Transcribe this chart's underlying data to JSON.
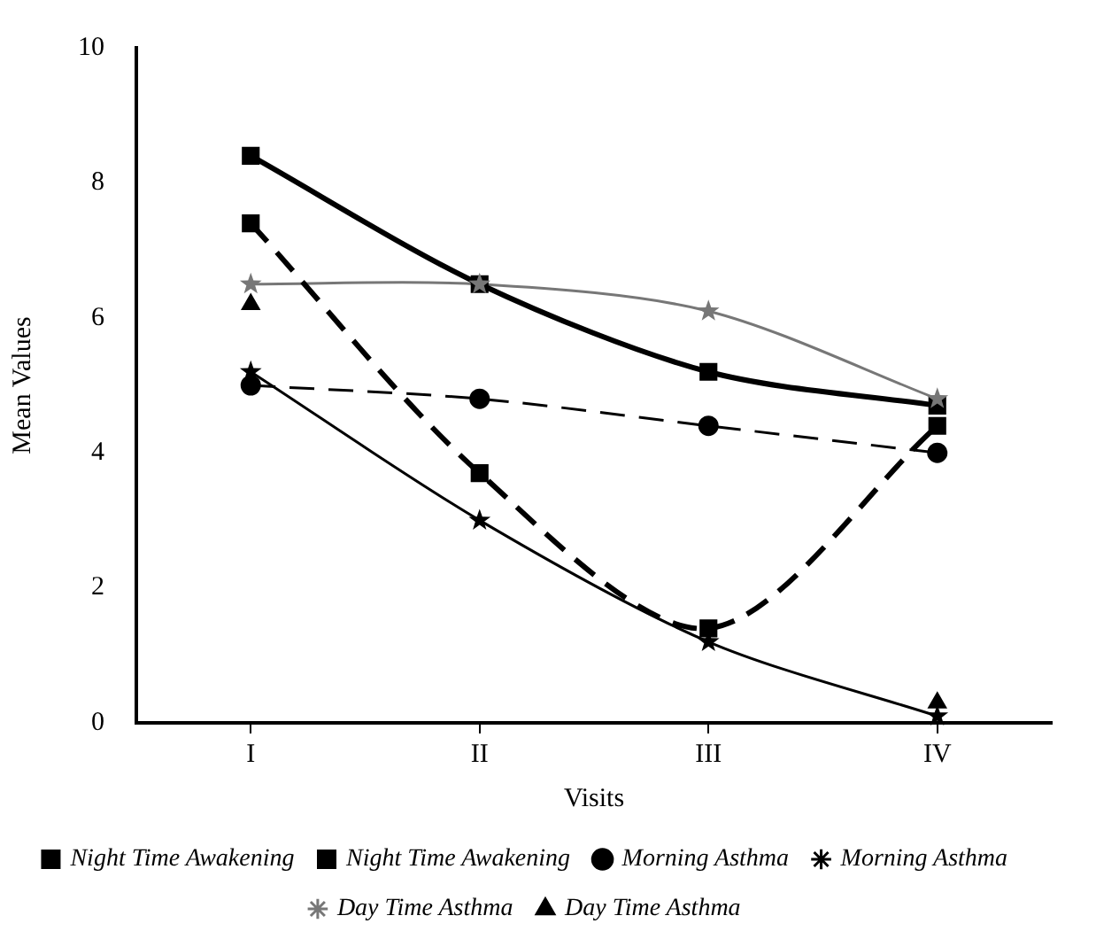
{
  "chart_data": {
    "type": "line",
    "xlabel": "Visits",
    "ylabel": "Mean Values",
    "categories": [
      "I",
      "II",
      "III",
      "IV"
    ],
    "ylim": [
      0,
      10
    ],
    "yticks": [
      0,
      2,
      4,
      6,
      8,
      10
    ],
    "grid": false,
    "legend": "bottom",
    "series": [
      {
        "name": "Night Time Awakening",
        "color": "#000000",
        "values": [
          8.4,
          6.5,
          5.2,
          4.7
        ],
        "marker": "square",
        "line_style": "solid"
      },
      {
        "name": "Night Time Awakening",
        "color": "#000000",
        "values": [
          7.4,
          3.7,
          1.4,
          4.4
        ],
        "marker": "square",
        "line_style": "dashed"
      },
      {
        "name": "Morning Asthma",
        "color": "#000000",
        "values": [
          5.0,
          4.8,
          4.4,
          4.0
        ],
        "marker": "circle",
        "line_style": "dashed"
      },
      {
        "name": "Morning Asthma",
        "color": "#000000",
        "values": [
          5.2,
          3.0,
          1.2,
          0.1
        ],
        "marker": "star",
        "line_style": "solid"
      },
      {
        "name": "Day Time Asthma",
        "color": "#777777",
        "values": [
          6.5,
          6.5,
          6.1,
          4.8
        ],
        "marker": "star",
        "line_style": "solid"
      },
      {
        "name": "Day Time Asthma",
        "color": "#000000",
        "type": "scatter",
        "values": [
          6.2,
          null,
          null,
          0.3
        ],
        "marker": "triangle"
      }
    ]
  }
}
